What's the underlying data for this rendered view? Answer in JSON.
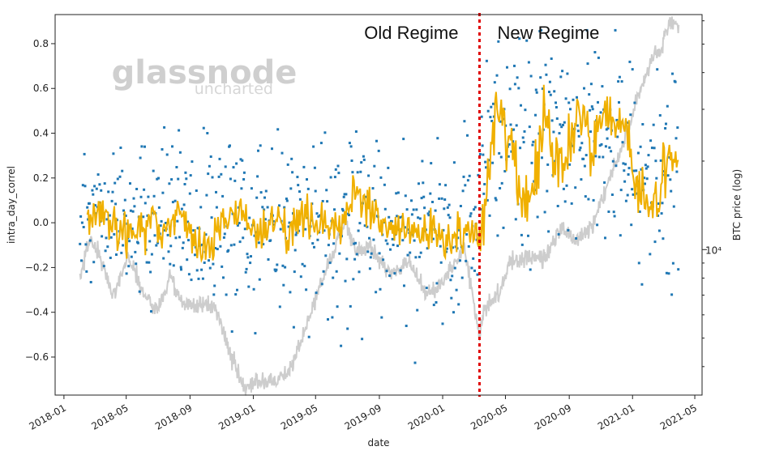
{
  "chart_data": {
    "type": "line",
    "xlabel": "date",
    "ylabel": "intra_day_correl",
    "y2label": "BTC price (log)",
    "x_ticks": [
      "2018-01",
      "2018-05",
      "2018-09",
      "2019-01",
      "2019-05",
      "2019-09",
      "2020-01",
      "2020-05",
      "2020-09",
      "2021-01",
      "2021-05"
    ],
    "y_ticks": [
      "0.8",
      "0.6",
      "0.4",
      "0.2",
      "0.0",
      "−0.2",
      "−0.4",
      "−0.6"
    ],
    "y2_tick": "10⁴",
    "xlim": [
      "2017-12-15",
      "2021-05-15"
    ],
    "ylim": [
      -0.77,
      0.93
    ],
    "y2lim_log": [
      3200,
      63000
    ],
    "grid": false,
    "annotations": {
      "divider_date": "2020-03-12",
      "old_regime": "Old Regime",
      "new_regime": "New Regime"
    },
    "watermark": {
      "brand": "glassnode",
      "tagline": "uncharted"
    },
    "colors": {
      "points": "#1f77b4",
      "rolling_line": "#f0b000",
      "btc_price": "#c8c8c8",
      "divider": "#e00000"
    },
    "series": [
      {
        "kind": "scatter",
        "color": "#1f77b4",
        "segments": [
          {
            "from": "2018-02-01",
            "to": "2018-08-15",
            "mean": 0.02,
            "spread": 0.17
          },
          {
            "from": "2018-08-15",
            "to": "2019-05-01",
            "mean": 0.0,
            "spread": 0.19
          },
          {
            "from": "2019-05-01",
            "to": "2020-03-12",
            "mean": -0.04,
            "spread": 0.2
          },
          {
            "from": "2020-03-12",
            "to": "2021-01-01",
            "mean": 0.35,
            "spread": 0.24
          },
          {
            "from": "2021-01-01",
            "to": "2021-03-31",
            "mean": 0.18,
            "spread": 0.25
          }
        ]
      },
      {
        "kind": "line",
        "color": "#f0b000",
        "x": [
          "2018-02-15",
          "2018-03-15",
          "2018-04-15",
          "2018-05-15",
          "2018-06-15",
          "2018-07-15",
          "2018-08-15",
          "2018-09-15",
          "2018-10-15",
          "2018-11-15",
          "2018-12-15",
          "2019-01-15",
          "2019-02-15",
          "2019-03-15",
          "2019-04-15",
          "2019-05-15",
          "2019-06-15",
          "2019-07-15",
          "2019-08-15",
          "2019-09-15",
          "2019-10-15",
          "2019-11-15",
          "2019-12-15",
          "2020-01-15",
          "2020-02-15",
          "2020-03-12",
          "2020-03-25",
          "2020-04-15",
          "2020-05-15",
          "2020-06-15",
          "2020-07-15",
          "2020-08-15",
          "2020-09-15",
          "2020-10-15",
          "2020-11-15",
          "2020-12-15",
          "2021-01-15",
          "2021-02-15",
          "2021-03-15",
          "2021-03-31"
        ],
        "y": [
          0.05,
          0.05,
          -0.05,
          -0.06,
          0.0,
          -0.05,
          0.06,
          -0.12,
          -0.06,
          0.03,
          0.0,
          -0.05,
          0.05,
          -0.05,
          0.04,
          0.03,
          -0.05,
          0.12,
          0.05,
          -0.05,
          0.0,
          -0.08,
          -0.02,
          -0.08,
          -0.06,
          -0.05,
          0.12,
          0.5,
          0.3,
          0.05,
          0.5,
          0.2,
          0.5,
          0.3,
          0.55,
          0.4,
          0.15,
          0.1,
          0.3,
          0.25
        ]
      },
      {
        "kind": "line",
        "axis": "right-log",
        "color": "#c8c8c8",
        "x": [
          "2018-02-01",
          "2018-02-20",
          "2018-03-10",
          "2018-04-05",
          "2018-05-05",
          "2018-06-05",
          "2018-07-01",
          "2018-07-25",
          "2018-08-15",
          "2018-09-15",
          "2018-10-20",
          "2018-11-20",
          "2018-12-15",
          "2019-01-15",
          "2019-02-10",
          "2019-03-15",
          "2019-04-05",
          "2019-05-15",
          "2019-06-26",
          "2019-07-20",
          "2019-08-15",
          "2019-09-25",
          "2019-10-26",
          "2019-11-25",
          "2019-12-20",
          "2020-01-15",
          "2020-02-12",
          "2020-03-12",
          "2020-03-20",
          "2020-04-15",
          "2020-05-10",
          "2020-06-15",
          "2020-07-15",
          "2020-08-15",
          "2020-09-15",
          "2020-10-20",
          "2020-11-20",
          "2020-12-15",
          "2020-12-31",
          "2021-01-15",
          "2021-02-10",
          "2021-02-25",
          "2021-03-13",
          "2021-03-31"
        ],
        "y": [
          8000,
          11000,
          9500,
          7000,
          9500,
          7000,
          6200,
          8200,
          6500,
          6500,
          6400,
          4300,
          3300,
          3600,
          3600,
          3900,
          5000,
          8000,
          12500,
          9800,
          10200,
          8200,
          9300,
          7200,
          7200,
          8700,
          10200,
          5000,
          6300,
          7000,
          9100,
          9400,
          9200,
          11800,
          10700,
          12500,
          18000,
          23000,
          29000,
          35000,
          45000,
          47000,
          59000,
          58000
        ]
      }
    ]
  }
}
